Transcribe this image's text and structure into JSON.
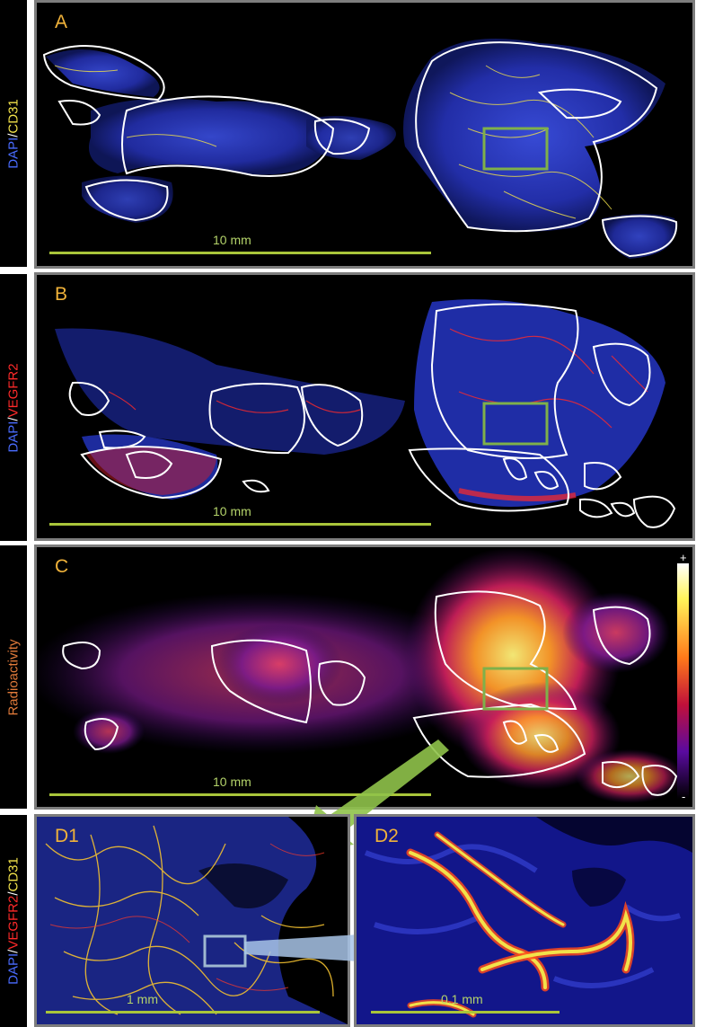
{
  "panels": {
    "a": {
      "letter": "A",
      "stain_a": "DAPI",
      "sep": "/",
      "stain_b": "CD31",
      "scale": "10 mm"
    },
    "b": {
      "letter": "B",
      "stain_a": "DAPI",
      "sep": "/",
      "stain_b": "VEGFR2",
      "scale": "10 mm"
    },
    "c": {
      "letter": "C",
      "stain_a": "Radioactivity",
      "scale": "10 mm",
      "colorbar_max": "+",
      "colorbar_min": "-"
    },
    "d": {
      "stain_a": "DAPI",
      "sep1": "/",
      "stain_b": "VEGFR2",
      "sep2": "/",
      "stain_c": "CD31",
      "d1_letter": "D1",
      "d1_scale": "1 mm",
      "d2_letter": "D2",
      "d2_scale": "0.1 mm"
    }
  },
  "colors": {
    "dapi": "#4a6cff",
    "cd31": "#f2e24a",
    "vegfr2": "#ff2a2a",
    "radioactivity": "#e07a3a",
    "panel_letter": "#f0b23a",
    "scale_bar": "#a9c53a",
    "roi_box": "#7fb04a"
  }
}
